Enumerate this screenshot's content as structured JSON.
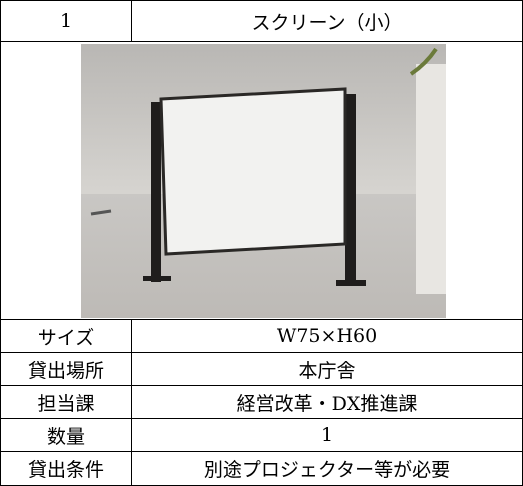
{
  "header": {
    "number": "1",
    "title": "スクリーン（小）"
  },
  "table": {
    "rows": [
      [
        "サイズ",
        "W75×H60"
      ],
      [
        "貸出場所",
        "本庁舎"
      ],
      [
        "担当課",
        "経営改革・DX推進課"
      ],
      [
        "数量",
        "1"
      ],
      [
        "貸出条件",
        "別途プロジェクター等が必要"
      ]
    ]
  }
}
